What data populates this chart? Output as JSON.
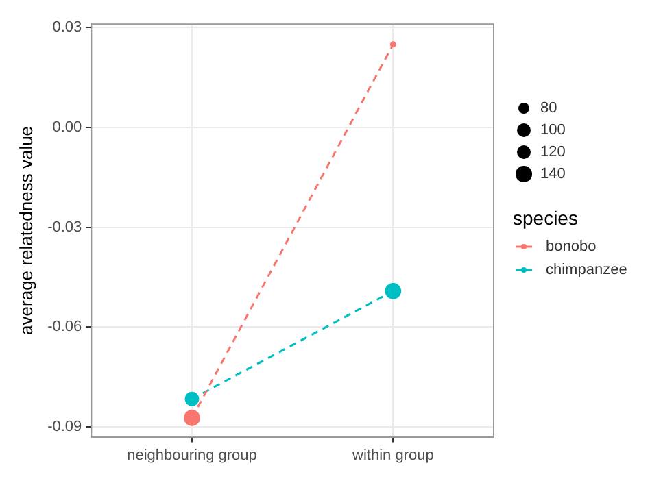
{
  "chart_data": {
    "type": "bubble",
    "ylabel": "average relatedness value",
    "categories": [
      "neighbouring group",
      "within group"
    ],
    "series": [
      {
        "name": "bonobo",
        "color": "#f8766d",
        "values": [
          -0.0873,
          0.0249
        ],
        "sizes": [
          140,
          20
        ]
      },
      {
        "name": "chimpanzee",
        "color": "#00bfc4",
        "values": [
          -0.0816,
          -0.0492
        ],
        "sizes": [
          110,
          140
        ]
      },
      {
        "type": "line",
        "marker": "none",
        "color": "#f8766d",
        "values": [
          -0.0873,
          0.0249
        ]
      },
      {
        "type": "line",
        "marker": "none",
        "color": "#00bfc4",
        "values": [
          -0.0816,
          -0.0492
        ]
      }
    ],
    "size_legend": [
      80,
      100,
      120,
      140
    ],
    "legend_title": "species",
    "legend": "right",
    "line_style": "dashed",
    "marker": "circle",
    "grid": true,
    "ylim": [
      -0.093,
      0.031
    ],
    "yticks": [
      0.03,
      {
        "value": 0,
        "label": "0.00"
      },
      -0.03,
      -0.06,
      -0.09
    ]
  }
}
